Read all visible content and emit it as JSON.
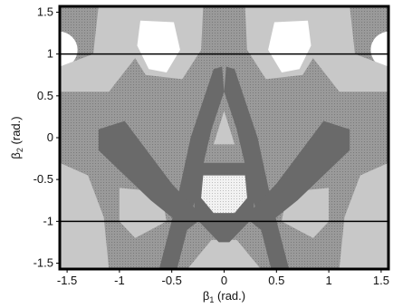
{
  "chart_data": {
    "type": "heatmap",
    "title": "",
    "xlabel": "β1 (rad.)",
    "ylabel": "β2 (rad.)",
    "xlabel_parts": {
      "sym": "β",
      "sub": "1",
      "unit": "(rad.)"
    },
    "ylabel_parts": {
      "sym": "β",
      "sub": "2",
      "unit": "(rad.)"
    },
    "xlim": [
      -1.57,
      1.57
    ],
    "ylim": [
      -1.57,
      1.57
    ],
    "x_ticks": [
      {
        "value": -1.5,
        "label": "-1.5"
      },
      {
        "value": -1.0,
        "label": "-1"
      },
      {
        "value": -0.5,
        "label": "-0.5"
      },
      {
        "value": 0.0,
        "label": "0"
      },
      {
        "value": 0.5,
        "label": "0.5"
      },
      {
        "value": 1.0,
        "label": "1"
      },
      {
        "value": 1.5,
        "label": "1.5"
      }
    ],
    "y_ticks": [
      {
        "value": 1.5,
        "label": "1.5"
      },
      {
        "value": 1.0,
        "label": "1"
      },
      {
        "value": 0.5,
        "label": "0.5"
      },
      {
        "value": 0.0,
        "label": "0"
      },
      {
        "value": -0.5,
        "label": "-0.5"
      },
      {
        "value": -1.0,
        "label": "-1"
      },
      {
        "value": -1.5,
        "label": "-1.5"
      }
    ],
    "reference_lines_y": [
      1.0,
      -1.0
    ],
    "grid": false,
    "legend": "none",
    "levels": [
      {
        "name": "level-white",
        "color": "#ffffff"
      },
      {
        "name": "level-light",
        "color": "#c8c8c8"
      },
      {
        "name": "level-mid",
        "color": "#8c8c8c"
      },
      {
        "name": "level-dark",
        "color": "#6a6a6a"
      },
      {
        "name": "level-mesh",
        "color": "#e6e6e6"
      }
    ],
    "regions": [
      {
        "name": "left-circle-top",
        "level": "level-white",
        "shape": "ellipse",
        "cx": -1.58,
        "cy": 1.05,
        "rx": 0.18,
        "ry": 0.22
      },
      {
        "name": "right-circle-top",
        "level": "level-white",
        "shape": "ellipse",
        "cx": 1.58,
        "cy": 1.05,
        "rx": 0.18,
        "ry": 0.22
      },
      {
        "name": "left-circle-bottom",
        "level": "level-white",
        "shape": "ellipse",
        "cx": -1.58,
        "cy": -1.05,
        "rx": 0.18,
        "ry": 0.22
      },
      {
        "name": "right-circle-bottom",
        "level": "level-white",
        "shape": "ellipse",
        "cx": 1.58,
        "cy": -1.05,
        "rx": 0.18,
        "ry": 0.22
      },
      {
        "name": "light-band-upper-left",
        "level": "level-light",
        "shape": "polygon",
        "points": [
          [
            -1.2,
            1.57
          ],
          [
            -0.85,
            1.57
          ],
          [
            -0.85,
            0.95
          ],
          [
            -1.1,
            0.55
          ],
          [
            -1.57,
            0.55
          ],
          [
            -1.57,
            0.85
          ],
          [
            -1.25,
            1.0
          ]
        ]
      },
      {
        "name": "light-band-upper-right",
        "level": "level-light",
        "shape": "polygon",
        "points": [
          [
            1.2,
            1.57
          ],
          [
            0.85,
            1.57
          ],
          [
            0.85,
            0.95
          ],
          [
            1.1,
            0.55
          ],
          [
            1.57,
            0.55
          ],
          [
            1.57,
            0.85
          ],
          [
            1.25,
            1.0
          ]
        ]
      },
      {
        "name": "light-lobe-upper-left",
        "level": "level-light",
        "shape": "polygon",
        "points": [
          [
            -0.85,
            1.57
          ],
          [
            -0.2,
            1.57
          ],
          [
            -0.22,
            1.05
          ],
          [
            -0.4,
            0.7
          ],
          [
            -0.75,
            0.75
          ],
          [
            -0.9,
            1.05
          ]
        ]
      },
      {
        "name": "light-lobe-upper-right",
        "level": "level-light",
        "shape": "polygon",
        "points": [
          [
            0.85,
            1.57
          ],
          [
            0.2,
            1.57
          ],
          [
            0.22,
            1.05
          ],
          [
            0.4,
            0.7
          ],
          [
            0.75,
            0.75
          ],
          [
            0.9,
            1.05
          ]
        ]
      },
      {
        "name": "white-lobe-upper-left",
        "level": "level-white",
        "shape": "polygon",
        "points": [
          [
            -0.8,
            1.4
          ],
          [
            -0.48,
            1.38
          ],
          [
            -0.42,
            1.05
          ],
          [
            -0.55,
            0.78
          ],
          [
            -0.72,
            0.82
          ],
          [
            -0.83,
            1.1
          ]
        ]
      },
      {
        "name": "white-lobe-upper-right",
        "level": "level-white",
        "shape": "polygon",
        "points": [
          [
            0.8,
            1.4
          ],
          [
            0.48,
            1.38
          ],
          [
            0.42,
            1.05
          ],
          [
            0.55,
            0.78
          ],
          [
            0.72,
            0.82
          ],
          [
            0.83,
            1.1
          ]
        ]
      },
      {
        "name": "light-band-lower-left",
        "level": "level-light",
        "shape": "polygon",
        "points": [
          [
            -1.57,
            -0.3
          ],
          [
            -1.3,
            -0.45
          ],
          [
            -1.15,
            -0.95
          ],
          [
            -1.1,
            -1.57
          ],
          [
            -1.57,
            -1.57
          ]
        ]
      },
      {
        "name": "light-band-lower-right",
        "level": "level-light",
        "shape": "polygon",
        "points": [
          [
            1.57,
            -0.3
          ],
          [
            1.3,
            -0.45
          ],
          [
            1.15,
            -0.95
          ],
          [
            1.1,
            -1.57
          ],
          [
            1.57,
            -1.57
          ]
        ]
      },
      {
        "name": "light-lower-left",
        "level": "level-light",
        "shape": "polygon",
        "points": [
          [
            -1.0,
            -0.6
          ],
          [
            -0.6,
            -0.65
          ],
          [
            -0.55,
            -1.0
          ],
          [
            -0.85,
            -1.2
          ],
          [
            -1.0,
            -1.0
          ]
        ]
      },
      {
        "name": "light-lower-right",
        "level": "level-light",
        "shape": "polygon",
        "points": [
          [
            1.0,
            -0.6
          ],
          [
            0.6,
            -0.65
          ],
          [
            0.55,
            -1.0
          ],
          [
            0.85,
            -1.2
          ],
          [
            1.0,
            -1.0
          ]
        ]
      },
      {
        "name": "light-bottom-center",
        "level": "level-light",
        "shape": "polygon",
        "points": [
          [
            -0.12,
            -1.22
          ],
          [
            0.12,
            -1.22
          ],
          [
            0.35,
            -1.57
          ],
          [
            -0.35,
            -1.57
          ]
        ]
      },
      {
        "name": "dark-arch-left",
        "level": "level-dark",
        "shape": "polygon",
        "points": [
          [
            -0.02,
            0.85
          ],
          [
            -0.1,
            0.82
          ],
          [
            -0.32,
            0.0
          ],
          [
            -0.45,
            -0.75
          ],
          [
            -0.62,
            -1.57
          ],
          [
            -0.45,
            -1.57
          ],
          [
            -0.28,
            -0.75
          ],
          [
            -0.12,
            0.1
          ],
          [
            0.0,
            0.55
          ]
        ]
      },
      {
        "name": "dark-arch-right",
        "level": "level-dark",
        "shape": "polygon",
        "points": [
          [
            0.02,
            0.85
          ],
          [
            0.1,
            0.82
          ],
          [
            0.32,
            0.0
          ],
          [
            0.45,
            -0.75
          ],
          [
            0.62,
            -1.57
          ],
          [
            0.45,
            -1.57
          ],
          [
            0.28,
            -0.75
          ],
          [
            0.12,
            0.1
          ],
          [
            0.0,
            0.55
          ]
        ]
      },
      {
        "name": "dark-wing-left",
        "level": "level-dark",
        "shape": "polygon",
        "points": [
          [
            -1.2,
            0.1
          ],
          [
            -0.95,
            0.2
          ],
          [
            -0.5,
            -0.55
          ],
          [
            -0.2,
            -0.95
          ],
          [
            -0.35,
            -1.1
          ],
          [
            -0.7,
            -0.75
          ],
          [
            -1.2,
            -0.15
          ]
        ]
      },
      {
        "name": "dark-wing-right",
        "level": "level-dark",
        "shape": "polygon",
        "points": [
          [
            1.2,
            0.1
          ],
          [
            0.95,
            0.2
          ],
          [
            0.5,
            -0.55
          ],
          [
            0.2,
            -0.95
          ],
          [
            0.35,
            -1.1
          ],
          [
            0.7,
            -0.75
          ],
          [
            1.2,
            -0.15
          ]
        ]
      },
      {
        "name": "dark-cup-center",
        "level": "level-dark",
        "shape": "polygon",
        "points": [
          [
            -0.3,
            -0.3
          ],
          [
            0.3,
            -0.3
          ],
          [
            0.28,
            -0.95
          ],
          [
            0.05,
            -1.25
          ],
          [
            -0.05,
            -1.25
          ],
          [
            -0.28,
            -0.95
          ]
        ]
      },
      {
        "name": "light-triangle-center",
        "level": "level-light",
        "shape": "polygon",
        "points": [
          [
            0.0,
            0.32
          ],
          [
            0.1,
            -0.08
          ],
          [
            -0.1,
            -0.08
          ]
        ]
      },
      {
        "name": "mesh-cup-center",
        "level": "level-mesh",
        "shape": "polygon",
        "points": [
          [
            -0.2,
            -0.45
          ],
          [
            0.2,
            -0.45
          ],
          [
            0.22,
            -0.72
          ],
          [
            0.1,
            -0.9
          ],
          [
            -0.1,
            -0.9
          ],
          [
            -0.22,
            -0.72
          ]
        ]
      }
    ]
  }
}
